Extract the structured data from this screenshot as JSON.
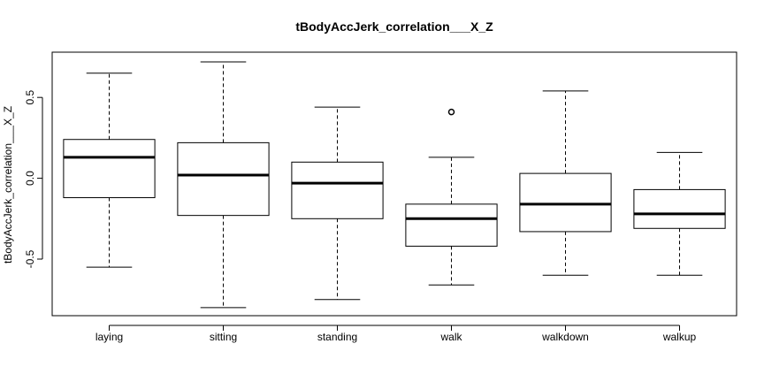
{
  "chart_data": {
    "type": "boxplot",
    "title": "tBodyAccJerk_correlation___X_Z",
    "xlabel": "",
    "ylabel": "tBodyAccJerk_correlation___X_Z",
    "ylim": [
      -0.85,
      0.78
    ],
    "yticks": [
      0.5,
      0.0,
      -0.5
    ],
    "ytick_labels": [
      "0.5",
      "0.0",
      "-0.5"
    ],
    "categories": [
      "laying",
      "sitting",
      "standing",
      "walk",
      "walkdown",
      "walkup"
    ],
    "boxes": [
      {
        "category": "laying",
        "whisker_low": -0.55,
        "q1": -0.12,
        "median": 0.13,
        "q3": 0.24,
        "whisker_high": 0.65,
        "outliers": []
      },
      {
        "category": "sitting",
        "whisker_low": -0.8,
        "q1": -0.23,
        "median": 0.02,
        "q3": 0.22,
        "whisker_high": 0.72,
        "outliers": []
      },
      {
        "category": "standing",
        "whisker_low": -0.75,
        "q1": -0.25,
        "median": -0.03,
        "q3": 0.1,
        "whisker_high": 0.44,
        "outliers": []
      },
      {
        "category": "walk",
        "whisker_low": -0.66,
        "q1": -0.42,
        "median": -0.25,
        "q3": -0.16,
        "whisker_high": 0.13,
        "outliers": [
          0.41
        ]
      },
      {
        "category": "walkdown",
        "whisker_low": -0.6,
        "q1": -0.33,
        "median": -0.16,
        "q3": 0.03,
        "whisker_high": 0.54,
        "outliers": []
      },
      {
        "category": "walkup",
        "whisker_low": -0.6,
        "q1": -0.31,
        "median": -0.22,
        "q3": -0.07,
        "whisker_high": 0.16,
        "outliers": []
      }
    ],
    "grid": false,
    "legend": "none"
  }
}
